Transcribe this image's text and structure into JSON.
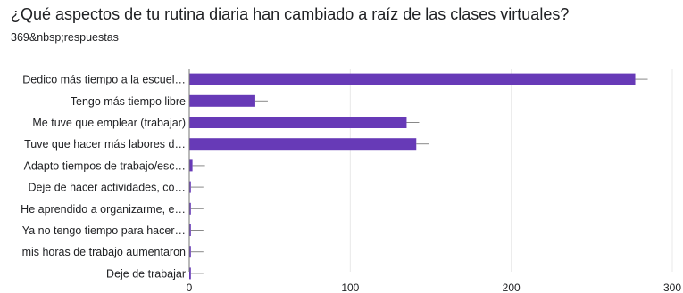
{
  "title": "¿Qué aspectos de tu rutina diaria han cambiado a raíz de las clases virtuales?",
  "subtitle": "369&nbsp;respuestas",
  "colors": {
    "bar": "#673ab7",
    "grid": "#e8e8e8",
    "axis": "#757575",
    "whisker": "#888888"
  },
  "chart_data": {
    "type": "bar",
    "orientation": "horizontal",
    "categories": [
      "Dedico más tiempo a la escuel…",
      "Tengo más tiempo libre",
      "Me tuve que emplear (trabajar)",
      "Tuve que hacer más labores d…",
      "Adapto tiempos de trabajo/esc…",
      "Deje de hacer actividades, co…",
      "He aprendido a organizarme, e…",
      "Ya no tengo tiempo para hacer…",
      "mis horas de trabajo aumentaron",
      "Deje de trabajar"
    ],
    "values": [
      277,
      41,
      135,
      141,
      2,
      1,
      1,
      1,
      1,
      1
    ],
    "xlim": [
      0,
      300
    ],
    "xticks": [
      0,
      100,
      200,
      300
    ],
    "grid": true
  }
}
